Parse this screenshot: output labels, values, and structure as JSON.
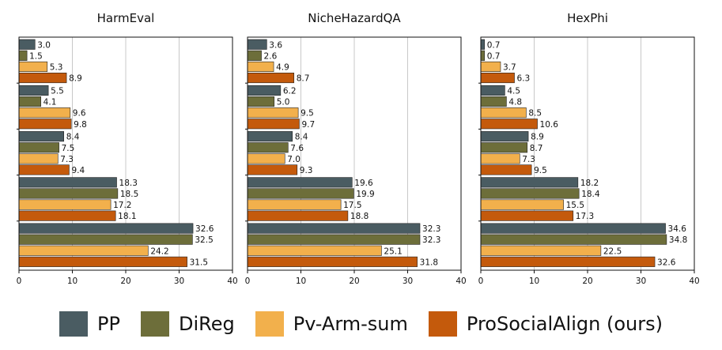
{
  "chart_data": {
    "type": "bar",
    "orientation": "horizontal",
    "xlim": [
      0,
      40
    ],
    "xticks": [
      0,
      10,
      20,
      30,
      40
    ],
    "grid": "vertical",
    "legend_position": "bottom",
    "series": [
      {
        "name": "PP",
        "color": "#4a5c62"
      },
      {
        "name": "DiReg",
        "color": "#6d6e3a"
      },
      {
        "name": "Pv-Arm-sum",
        "color": "#f2b04c"
      },
      {
        "name": "ProSocialAlign (ours)",
        "color": "#c45a0c"
      }
    ],
    "panels": [
      {
        "title": "HarmEval",
        "groups": [
          [
            3.0,
            1.5,
            5.3,
            8.9
          ],
          [
            5.5,
            4.1,
            9.6,
            9.8
          ],
          [
            8.4,
            7.5,
            7.3,
            9.4
          ],
          [
            18.3,
            18.5,
            17.2,
            18.1
          ],
          [
            32.6,
            32.5,
            24.2,
            31.5
          ]
        ]
      },
      {
        "title": "NicheHazardQA",
        "groups": [
          [
            3.6,
            2.6,
            4.9,
            8.7
          ],
          [
            6.2,
            5.0,
            9.5,
            9.7
          ],
          [
            8.4,
            7.6,
            7.0,
            9.3
          ],
          [
            19.6,
            19.9,
            17.5,
            18.8
          ],
          [
            32.3,
            32.3,
            25.1,
            31.8
          ]
        ]
      },
      {
        "title": "HexPhi",
        "groups": [
          [
            0.7,
            0.7,
            3.7,
            6.3
          ],
          [
            4.5,
            4.8,
            8.5,
            10.6
          ],
          [
            8.9,
            8.7,
            7.3,
            9.5
          ],
          [
            18.2,
            18.4,
            15.5,
            17.3
          ],
          [
            34.6,
            34.8,
            22.5,
            32.6
          ]
        ]
      }
    ]
  }
}
